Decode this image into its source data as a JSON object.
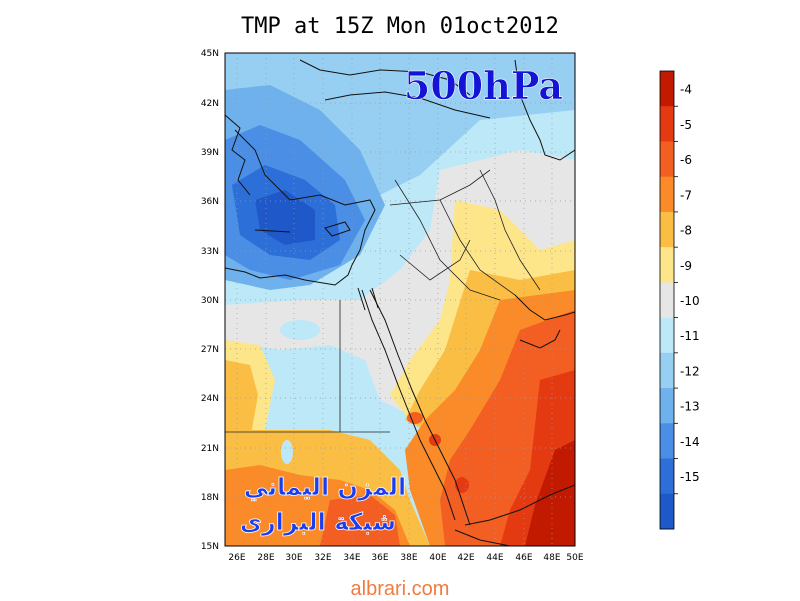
{
  "title": "TMP at 15Z Mon 01oct2012",
  "level_label": "500hPa",
  "watermark": {
    "line1": "المزن اليماني",
    "line2": "شبكة البرارى"
  },
  "footer": "albrari.com",
  "map": {
    "lat_labels": [
      "45N",
      "42N",
      "39N",
      "36N",
      "33N",
      "30N",
      "27N",
      "24N",
      "21N",
      "18N",
      "15N"
    ],
    "lon_labels": [
      "26E",
      "28E",
      "30E",
      "32E",
      "34E",
      "36E",
      "38E",
      "40E",
      "42E",
      "44E",
      "46E",
      "48E",
      "50E"
    ]
  },
  "colorbar": {
    "labels": [
      "-4",
      "-5",
      "-6",
      "-7",
      "-8",
      "-9",
      "-10",
      "-11",
      "-12",
      "-13",
      "-14",
      "-15"
    ],
    "colors": [
      "#c11a00",
      "#e33a12",
      "#f35e22",
      "#fb8b28",
      "#fbbe44",
      "#fde58a",
      "#e6e6e6",
      "#bde8f8",
      "#97cff3",
      "#6fb1ec",
      "#4a8ee6",
      "#2d6fd9",
      "#1f58c9"
    ]
  },
  "colors": {
    "level_label": "#1414d6",
    "watermark": "#1b3df0",
    "footer": "#f27a3c"
  }
}
